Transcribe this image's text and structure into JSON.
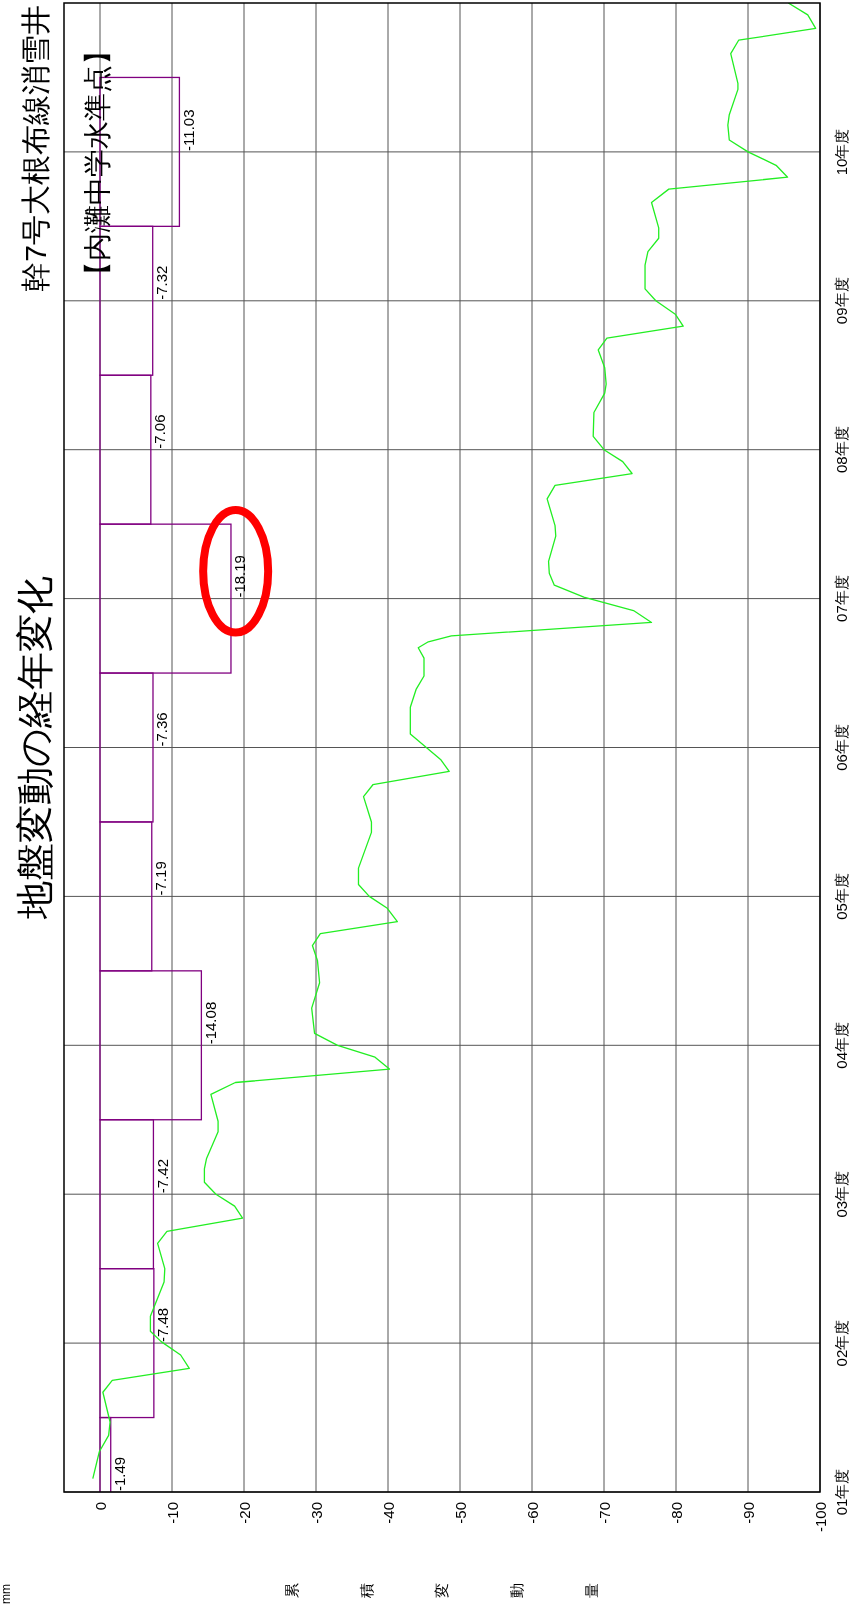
{
  "chart_data": {
    "type": "bar",
    "orientation": "horizontal",
    "title": "地盤変動の経年変化",
    "subtitle": "幹7号大根布線消雪井",
    "xlabel": "累積変動量",
    "annotations": [
      "【内灘中学水準点】",
      "mm"
    ],
    "xlim": [
      5,
      -100
    ],
    "xticks": [
      0,
      -10,
      -20,
      -30,
      -40,
      -50,
      -60,
      -70,
      -80,
      -90,
      -100
    ],
    "ylim": [
      1,
      11
    ],
    "yticks": [
      {
        "value": 1,
        "label": "01年度"
      },
      {
        "value": 2,
        "label": "02年度"
      },
      {
        "value": 3,
        "label": "03年度"
      },
      {
        "value": 4,
        "label": "04年度"
      },
      {
        "value": 5,
        "label": "05年度"
      },
      {
        "value": 6,
        "label": "06年度"
      },
      {
        "value": 7,
        "label": "07年度"
      },
      {
        "value": 8,
        "label": "08年度"
      },
      {
        "value": 9,
        "label": "09年度"
      },
      {
        "value": 10,
        "label": "10年度"
      }
    ],
    "grid": true,
    "series": [
      {
        "color": "#800080",
        "x": [
          1,
          2,
          3,
          4,
          5,
          6,
          7,
          8,
          9,
          10
        ],
        "values": [
          -1.49,
          -7.48,
          -7.42,
          -14.08,
          -7.19,
          -7.36,
          -18.19,
          -7.06,
          -7.32,
          -11.03
        ],
        "value_labels": [
          "-1.49",
          "-7.48",
          "-7.42",
          "-14.08",
          "-7.19",
          "-7.36",
          "-18.19",
          "-7.06",
          "-7.32",
          "-11.03"
        ]
      },
      {
        "type": "line",
        "color": "#22ee22",
        "x": [
          1.09,
          1.27,
          1.38,
          1.47,
          1.67,
          1.75,
          1.83,
          1.92,
          2.01,
          2.08,
          2.18,
          2.41,
          2.5,
          2.67,
          2.75,
          2.84,
          2.92,
          3.0,
          3.08,
          3.17,
          3.24,
          3.42,
          3.49,
          3.67,
          3.75,
          3.84,
          3.92,
          4.0,
          4.08,
          4.25,
          4.42,
          4.57,
          4.67,
          4.75,
          4.83,
          4.92,
          5.0,
          5.08,
          5.19,
          5.43,
          5.5,
          5.67,
          5.75,
          5.84,
          5.92,
          6.09,
          6.27,
          6.39,
          6.48,
          6.6,
          6.67,
          6.71,
          6.75,
          6.84,
          6.92,
          7.01,
          7.09,
          7.17,
          7.25,
          7.42,
          7.49,
          7.67,
          7.76,
          7.84,
          7.92,
          8.0,
          8.09,
          8.25,
          8.38,
          8.44,
          8.55,
          8.67,
          8.75,
          8.83,
          8.91,
          9.0,
          9.08,
          9.24,
          9.33,
          9.42,
          9.49,
          9.66,
          9.75,
          9.83,
          9.91,
          10.0,
          10.08,
          10.18,
          10.25,
          10.42,
          10.46,
          10.66,
          10.75,
          10.83,
          10.92,
          11.0
        ],
        "values": [
          1.0,
          0.1,
          -1.2,
          -1.4,
          -0.4,
          -1.7,
          -12.4,
          -11.2,
          -8.5,
          -7.0,
          -7.0,
          -8.9,
          -9.0,
          -8.0,
          -9.3,
          -19.8,
          -18.7,
          -16.1,
          -14.5,
          -14.5,
          -14.8,
          -16.4,
          -16.4,
          -15.4,
          -18.8,
          -40.2,
          -38.2,
          -33.0,
          -29.8,
          -29.4,
          -30.5,
          -30.2,
          -29.5,
          -30.6,
          -41.3,
          -39.9,
          -37.4,
          -35.9,
          -35.9,
          -37.7,
          -37.7,
          -36.6,
          -37.9,
          -48.5,
          -47.3,
          -43.1,
          -43.1,
          -43.9,
          -45.0,
          -45.0,
          -44.2,
          -45.6,
          -48.8,
          -76.6,
          -74.1,
          -67.2,
          -63.1,
          -62.4,
          -62.3,
          -63.3,
          -63.2,
          -62.1,
          -63.2,
          -73.9,
          -72.6,
          -70.0,
          -68.5,
          -68.6,
          -70.1,
          -70.3,
          -70.1,
          -69.2,
          -70.4,
          -81.0,
          -79.9,
          -77.2,
          -75.7,
          -75.7,
          -76.1,
          -77.6,
          -77.6,
          -76.6,
          -79.0,
          -95.5,
          -93.9,
          -90.0,
          -87.4,
          -87.2,
          -87.4,
          -88.6,
          -88.6,
          -87.6,
          -88.7,
          -99.4,
          -98.3,
          -95.6
        ]
      }
    ]
  }
}
